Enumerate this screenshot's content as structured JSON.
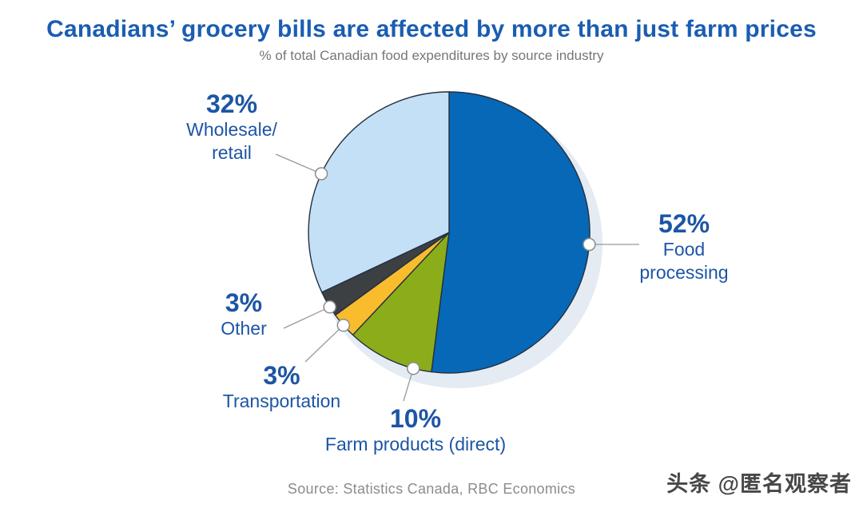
{
  "header": {
    "title": "Canadians’ grocery bills are affected by more than just farm prices",
    "subtitle": "% of total Canadian food expenditures by source industry"
  },
  "chart_data": {
    "type": "pie",
    "title": "Canadians’ grocery bills are affected by more than just farm prices",
    "subtitle": "% of total Canadian food expenditures by source industry",
    "unit": "%",
    "start_angle_deg": 0,
    "direction": "clockwise",
    "slices": [
      {
        "label": "Food processing",
        "value": 52,
        "pct_label": "52%",
        "display_label": "Food\nprocessing",
        "color": "#0668B7"
      },
      {
        "label": "Farm products (direct)",
        "value": 10,
        "pct_label": "10%",
        "display_label": "Farm products (direct)",
        "color": "#8CAD1A"
      },
      {
        "label": "Transportation",
        "value": 3,
        "pct_label": "3%",
        "display_label": "Transportation",
        "color": "#F9BC2D"
      },
      {
        "label": "Other",
        "value": 3,
        "pct_label": "3%",
        "display_label": "Other",
        "color": "#3C4043"
      },
      {
        "label": "Wholesale/retail",
        "value": 32,
        "pct_label": "32%",
        "display_label": "Wholesale/\nretail",
        "color": "#C4E0F6"
      }
    ],
    "legend": "none",
    "annotations": "callout lines with circular markers from each slice to its percentage label",
    "source": "Source: Statistics Canada, RBC Economics"
  },
  "footer": {
    "source": "Source: Statistics Canada, RBC Economics"
  },
  "watermark": {
    "text": "头条 @匿名观察者"
  },
  "colors": {
    "title": "#1A5DB2",
    "labels": "#1D55A5",
    "subtitle": "#767676",
    "source": "#8C8C8C",
    "slice_stroke": "#233040",
    "shadow": "#E5EBF2",
    "leader_line": "#999999",
    "marker_fill": "#FFFFFF",
    "marker_stroke": "#8C8C8C"
  }
}
